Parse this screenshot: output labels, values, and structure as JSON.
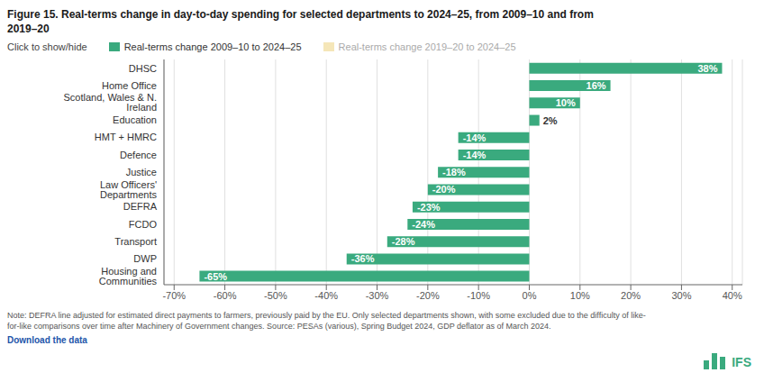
{
  "chart_data": {
    "type": "bar",
    "orientation": "horizontal",
    "title": "Figure 15. Real-terms change in day-to-day spending for selected departments to 2024–25, from 2009–10 and from\n2019–20",
    "categories": [
      "DHSC",
      "Home Office",
      "Scotland, Wales & N. Ireland",
      "Education",
      "HMT + HMRC",
      "Defence",
      "Justice",
      "Law Officers' Departments",
      "DEFRA",
      "FCDO",
      "Transport",
      "DWP",
      "Housing and Communities"
    ],
    "series": [
      {
        "name": "Real-terms change 2009–10 to 2024–25",
        "color": "#3aaa7e",
        "values": [
          38,
          16,
          10,
          2,
          -14,
          -14,
          -18,
          -20,
          -23,
          -24,
          -28,
          -36,
          -65
        ],
        "value_labels": [
          "38%",
          "16%",
          "10%",
          "2%",
          "-14%",
          "-14%",
          "-18%",
          "-20%",
          "-23%",
          "-24%",
          "-28%",
          "-36%",
          "-65%"
        ]
      },
      {
        "name": "Real-terms change 2019–20 to 2024–25",
        "color": "#f5e6b8",
        "values": [
          null,
          null,
          null,
          null,
          null,
          null,
          null,
          null,
          null,
          null,
          null,
          null,
          null
        ]
      }
    ],
    "data_labels": true,
    "xlim": [
      -72,
      42
    ],
    "xticks": [
      {
        "value": -70,
        "label": "-70%"
      },
      {
        "value": -60,
        "label": "-60%"
      },
      {
        "value": -50,
        "label": "-50%"
      },
      {
        "value": -40,
        "label": "-40%"
      },
      {
        "value": -30,
        "label": "-30%"
      },
      {
        "value": -20,
        "label": "-20%"
      },
      {
        "value": -10,
        "label": "-10%"
      },
      {
        "value": 0,
        "label": "0%"
      },
      {
        "value": 10,
        "label": "10%"
      },
      {
        "value": 20,
        "label": "20%"
      },
      {
        "value": 30,
        "label": "30%"
      },
      {
        "value": 40,
        "label": "40%"
      }
    ],
    "grid": true,
    "annotations": [
      "Click to show/hide",
      "Note: DEFRA line adjusted for estimated direct payments to farmers, previously paid by the EU. Only selected departments shown, with some excluded due to the difficulty of like-\nfor-like comparisons over time after Machinery of Government changes. Source: PESAs (various), Spring Budget 2024, GDP deflator as of March 2024.",
      "Download the data",
      "IFS"
    ]
  }
}
